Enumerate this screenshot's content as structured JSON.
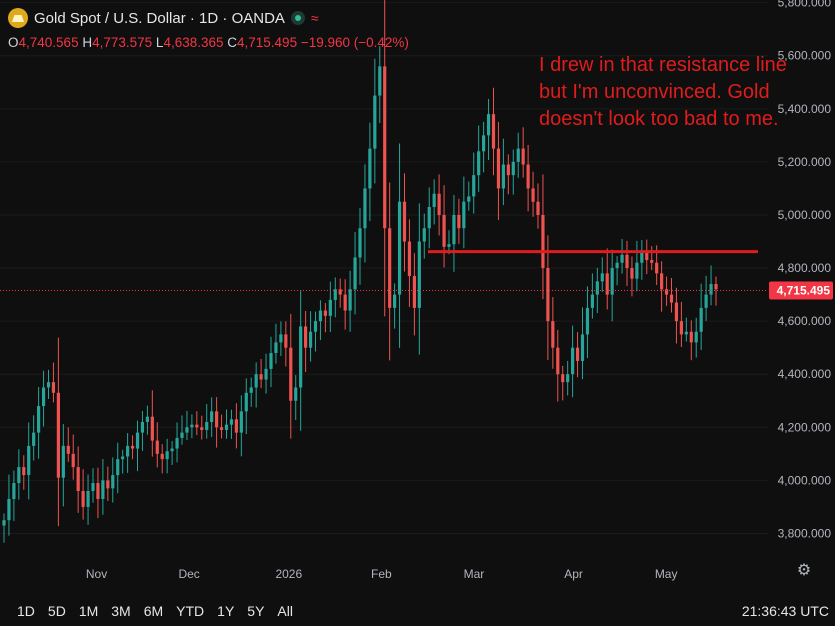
{
  "header": {
    "title": "Gold Spot / U.S. Dollar · 1D · OANDA",
    "wave_symbol": "≈",
    "ohlc": [
      {
        "k": "O",
        "v": "4,740.565"
      },
      {
        "k": "H",
        "v": "4,773.575"
      },
      {
        "k": "L",
        "v": "4,638.365"
      },
      {
        "k": "C",
        "v": "4,715.495"
      }
    ],
    "change": "−19.960 (−0.42%)"
  },
  "annotation": "I drew in that resistance line but I'm unconvinced. Gold doesn't look too bad to me.",
  "range_buttons": [
    "1D",
    "5D",
    "1M",
    "3M",
    "6M",
    "YTD",
    "1Y",
    "5Y",
    "All"
  ],
  "clock": "21:36:43 UTC",
  "icons": {
    "settings": "gear-icon",
    "logo": "gold-logo-icon",
    "live": "live-dot-icon"
  },
  "colors": {
    "up": "#26a69a",
    "down": "#ef5350",
    "line": "#e01c1c",
    "price_tag": "#f23645"
  },
  "chart_data": {
    "type": "candlestick",
    "x_tick_labels": [
      "Nov",
      "Dec",
      "2026",
      "Feb",
      "Mar",
      "Apr",
      "May"
    ],
    "y_tick_labels": [
      "3,800.000",
      "4,000.000",
      "4,200.000",
      "4,400.000",
      "4,600.000",
      "4,800.000",
      "5,000.000",
      "5,200.000",
      "5,400.000",
      "5,600.000",
      "5,800.000"
    ],
    "ylim": [
      3700,
      5810
    ],
    "current_price": 4715.495,
    "current_price_label": "4,715.495",
    "resistance_level": 4862,
    "closes": [
      3850,
      3930,
      3990,
      4050,
      4020,
      4130,
      4180,
      4280,
      4350,
      4370,
      4330,
      4010,
      4130,
      4100,
      4050,
      3960,
      3900,
      3960,
      3990,
      3930,
      4000,
      3970,
      4020,
      4080,
      4090,
      4130,
      4120,
      4180,
      4220,
      4240,
      4150,
      4100,
      4080,
      4110,
      4120,
      4160,
      4180,
      4200,
      4210,
      4200,
      4190,
      4220,
      4260,
      4200,
      4190,
      4210,
      4230,
      4180,
      4260,
      4330,
      4350,
      4400,
      4380,
      4420,
      4480,
      4520,
      4550,
      4500,
      4300,
      4350,
      4580,
      4500,
      4560,
      4600,
      4640,
      4620,
      4680,
      4720,
      4700,
      4640,
      4720,
      4840,
      4950,
      5100,
      5250,
      5450,
      5560,
      4950,
      4650,
      4700,
      5050,
      4900,
      4770,
      4650,
      4900,
      4950,
      5030,
      5080,
      5000,
      4880,
      4890,
      5000,
      4950,
      5050,
      5070,
      5150,
      5240,
      5300,
      5380,
      5250,
      5100,
      5190,
      5150,
      5200,
      5250,
      5190,
      5100,
      5050,
      5000,
      4800,
      4600,
      4500,
      4400,
      4370,
      4400,
      4500,
      4450,
      4550,
      4650,
      4700,
      4750,
      4780,
      4700,
      4800,
      4820,
      4850,
      4800,
      4760,
      4820,
      4860,
      4830,
      4820,
      4780,
      4720,
      4700,
      4670,
      4600,
      4550,
      4560,
      4520,
      4560,
      4650,
      4700,
      4740,
      4720
    ]
  }
}
